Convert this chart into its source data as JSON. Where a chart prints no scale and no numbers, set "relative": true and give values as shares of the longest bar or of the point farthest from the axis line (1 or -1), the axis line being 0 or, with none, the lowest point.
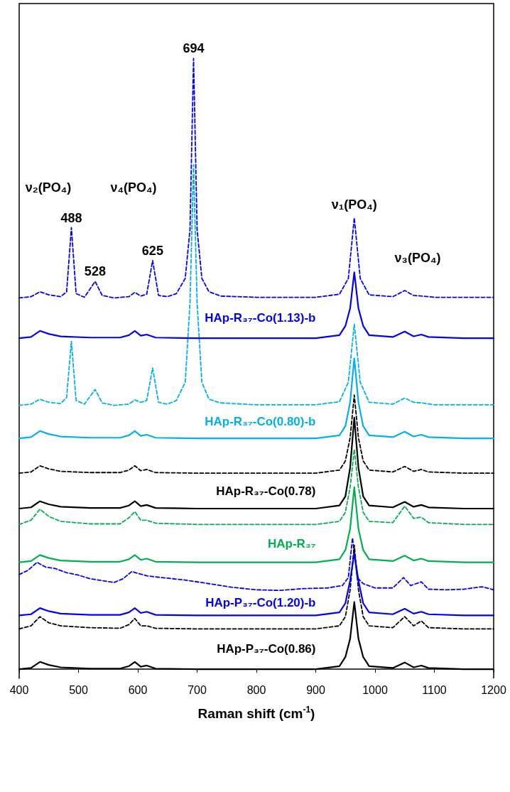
{
  "chart_data": {
    "type": "line",
    "relative": true,
    "xlabel": "Raman shift (cm$^{-1}$)",
    "xlim": [
      400,
      1200
    ],
    "xticks": [
      400,
      500,
      600,
      700,
      800,
      900,
      1000,
      1100,
      1200
    ],
    "grid": false,
    "legend": false,
    "marker": "none",
    "x": [
      400,
      420,
      435,
      450,
      470,
      520,
      570,
      585,
      595,
      605,
      615,
      630,
      700,
      800,
      900,
      940,
      950,
      958,
      965,
      972,
      980,
      990,
      1030,
      1050,
      1065,
      1078,
      1090,
      1150,
      1200
    ],
    "series": [
      {
        "color": "#0000ff",
        "line_style": "dashed",
        "x": [
          400,
          420,
          435,
          450,
          470,
          480,
          488,
          496,
          510,
          528,
          540,
          560,
          585,
          595,
          605,
          615,
          625,
          635,
          650,
          665,
          680,
          688,
          694,
          700,
          708,
          720,
          740,
          800,
          900,
          940,
          955,
          965,
          975,
          990,
          1030,
          1050,
          1065,
          1080,
          1100,
          1200
        ],
        "values": [
          0.608,
          0.61,
          0.618,
          0.613,
          0.61,
          0.618,
          0.723,
          0.615,
          0.609,
          0.635,
          0.612,
          0.608,
          0.61,
          0.617,
          0.611,
          0.614,
          0.669,
          0.612,
          0.61,
          0.615,
          0.64,
          0.72,
          1.0,
          0.72,
          0.64,
          0.618,
          0.611,
          0.609,
          0.609,
          0.614,
          0.64,
          0.739,
          0.64,
          0.613,
          0.61,
          0.62,
          0.612,
          0.611,
          0.609,
          0.609
        ]
      },
      {
        "name": "HAp-R₃₇-Co(1.13)-b",
        "color": "#0000ff",
        "line_style": "solid",
        "values": [
          0.542,
          0.544,
          0.554,
          0.549,
          0.545,
          0.543,
          0.543,
          0.547,
          0.554,
          0.546,
          0.548,
          0.543,
          0.542,
          0.542,
          0.542,
          0.547,
          0.562,
          0.591,
          0.65,
          0.591,
          0.562,
          0.547,
          0.544,
          0.553,
          0.545,
          0.548,
          0.544,
          0.542,
          0.542
        ]
      },
      {
        "color": "#00b0f0",
        "line_style": "dashed",
        "x": [
          400,
          420,
          435,
          450,
          470,
          480,
          488,
          496,
          510,
          528,
          540,
          560,
          585,
          595,
          605,
          615,
          625,
          635,
          650,
          665,
          680,
          688,
          694,
          700,
          708,
          720,
          740,
          800,
          900,
          940,
          955,
          965,
          975,
          990,
          1030,
          1050,
          1065,
          1080,
          1100,
          1200
        ],
        "values": [
          0.432,
          0.434,
          0.442,
          0.437,
          0.435,
          0.445,
          0.537,
          0.44,
          0.434,
          0.458,
          0.436,
          0.432,
          0.434,
          0.441,
          0.437,
          0.44,
          0.493,
          0.437,
          0.434,
          0.44,
          0.47,
          0.6,
          0.826,
          0.6,
          0.47,
          0.442,
          0.436,
          0.433,
          0.433,
          0.438,
          0.47,
          0.565,
          0.47,
          0.437,
          0.434,
          0.444,
          0.437,
          0.436,
          0.433,
          0.433
        ]
      },
      {
        "name": "HAp-R₃₇-Co(0.80)-b",
        "color": "#00b0f0",
        "line_style": "solid",
        "values": [
          0.378,
          0.38,
          0.39,
          0.385,
          0.381,
          0.379,
          0.379,
          0.383,
          0.39,
          0.382,
          0.384,
          0.379,
          0.378,
          0.378,
          0.378,
          0.383,
          0.398,
          0.437,
          0.509,
          0.437,
          0.398,
          0.383,
          0.38,
          0.389,
          0.381,
          0.384,
          0.38,
          0.378,
          0.378
        ]
      },
      {
        "color": "#000000",
        "line_style": "dashed",
        "values": [
          0.321,
          0.323,
          0.333,
          0.328,
          0.324,
          0.322,
          0.322,
          0.326,
          0.333,
          0.325,
          0.327,
          0.322,
          0.321,
          0.321,
          0.321,
          0.326,
          0.341,
          0.379,
          0.449,
          0.379,
          0.341,
          0.326,
          0.323,
          0.332,
          0.324,
          0.327,
          0.323,
          0.321,
          0.321
        ]
      },
      {
        "name": "HAp-R₃₇-Co(0.78)",
        "color": "#000000",
        "line_style": "solid",
        "values": [
          0.263,
          0.265,
          0.275,
          0.27,
          0.266,
          0.264,
          0.264,
          0.268,
          0.275,
          0.267,
          0.269,
          0.264,
          0.263,
          0.263,
          0.263,
          0.268,
          0.283,
          0.33,
          0.412,
          0.33,
          0.283,
          0.268,
          0.265,
          0.274,
          0.266,
          0.269,
          0.265,
          0.263,
          0.263
        ]
      },
      {
        "color": "#00b050",
        "line_style": "dashed",
        "values": [
          0.237,
          0.244,
          0.262,
          0.25,
          0.242,
          0.238,
          0.238,
          0.248,
          0.258,
          0.244,
          0.244,
          0.239,
          0.237,
          0.237,
          0.237,
          0.242,
          0.257,
          0.298,
          0.36,
          0.298,
          0.257,
          0.242,
          0.24,
          0.267,
          0.247,
          0.249,
          0.24,
          0.237,
          0.237
        ]
      },
      {
        "name": "HAp-R₃₇",
        "color": "#00b050",
        "line_style": "solid",
        "values": [
          0.175,
          0.177,
          0.187,
          0.182,
          0.178,
          0.176,
          0.176,
          0.18,
          0.187,
          0.179,
          0.181,
          0.176,
          0.175,
          0.175,
          0.175,
          0.18,
          0.195,
          0.23,
          0.298,
          0.23,
          0.195,
          0.18,
          0.177,
          0.186,
          0.178,
          0.181,
          0.177,
          0.175,
          0.175
        ]
      },
      {
        "color": "#0000ff",
        "line_style": "dashed",
        "x": [
          400,
          415,
          430,
          445,
          460,
          480,
          500,
          520,
          540,
          560,
          575,
          590,
          600,
          615,
          640,
          680,
          720,
          760,
          800,
          840,
          880,
          920,
          945,
          955,
          962,
          970,
          980,
          1000,
          1030,
          1048,
          1060,
          1078,
          1090,
          1120,
          1150,
          1180,
          1200
        ],
        "values": [
          0.155,
          0.162,
          0.175,
          0.167,
          0.165,
          0.158,
          0.154,
          0.148,
          0.145,
          0.142,
          0.148,
          0.16,
          0.157,
          0.153,
          0.15,
          0.146,
          0.14,
          0.134,
          0.13,
          0.129,
          0.132,
          0.133,
          0.137,
          0.15,
          0.215,
          0.15,
          0.14,
          0.133,
          0.133,
          0.15,
          0.137,
          0.143,
          0.131,
          0.13,
          0.131,
          0.135,
          0.13
        ]
      },
      {
        "name": "HAp-P₃₇-Co(1.20)-b",
        "color": "#0000ff",
        "line_style": "solid",
        "values": [
          0.088,
          0.09,
          0.1,
          0.095,
          0.091,
          0.089,
          0.089,
          0.093,
          0.1,
          0.092,
          0.094,
          0.089,
          0.088,
          0.088,
          0.088,
          0.093,
          0.108,
          0.145,
          0.19,
          0.145,
          0.108,
          0.093,
          0.09,
          0.099,
          0.091,
          0.094,
          0.09,
          0.088,
          0.088
        ]
      },
      {
        "color": "#000000",
        "line_style": "dashed",
        "values": [
          0.066,
          0.071,
          0.086,
          0.076,
          0.071,
          0.068,
          0.067,
          0.073,
          0.083,
          0.071,
          0.071,
          0.067,
          0.066,
          0.066,
          0.066,
          0.071,
          0.086,
          0.13,
          0.203,
          0.13,
          0.086,
          0.071,
          0.068,
          0.086,
          0.071,
          0.079,
          0.068,
          0.066,
          0.066
        ]
      },
      {
        "name": "HAp-P₃₇-Co(0.86)",
        "color": "#000000",
        "line_style": "solid",
        "values": [
          0,
          0.002,
          0.012,
          0.007,
          0.003,
          0.001,
          0.001,
          0.005,
          0.012,
          0.004,
          0.006,
          0.001,
          0,
          0,
          0,
          0.005,
          0.02,
          0.05,
          0.11,
          0.05,
          0.02,
          0.005,
          0.002,
          0.011,
          0.003,
          0.006,
          0.002,
          0,
          0
        ]
      }
    ],
    "annotations": [
      "ν₂(PO₄)",
      "ν₄(PO₄)",
      {
        "text": "ν₁(PO₄)",
        "x": 965,
        "y": 0.745
      },
      "ν₃(PO₄)",
      {
        "text": "488",
        "x": 488,
        "y": 0.723
      },
      {
        "text": "528",
        "x": 528,
        "y": 0.635
      },
      {
        "text": "625",
        "x": 625,
        "y": 0.669
      },
      {
        "text": "694",
        "x": 694,
        "y": 1.0
      }
    ]
  }
}
